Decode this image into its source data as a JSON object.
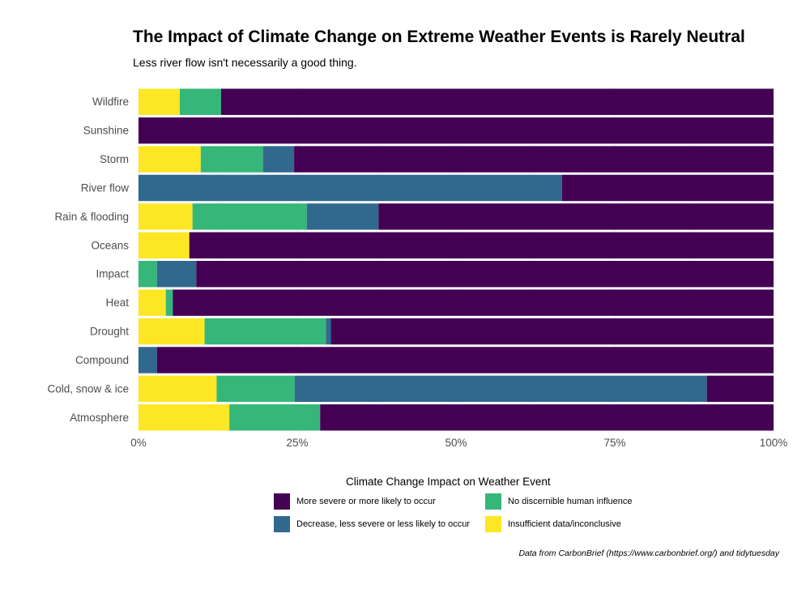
{
  "chart_data": {
    "type": "bar",
    "orientation": "horizontal",
    "stacked": true,
    "normalized": true,
    "title": "The Impact of Climate Change on Extreme Weather Events is Rarely Neutral",
    "subtitle": "Less river flow isn't necessarily a good thing.",
    "xlabel": "",
    "ylabel": "",
    "xlim": [
      0,
      100
    ],
    "x_ticks": [
      "0%",
      "25%",
      "50%",
      "75%",
      "100%"
    ],
    "categories": [
      "Wildfire",
      "Sunshine",
      "Storm",
      "River flow",
      "Rain & flooding",
      "Oceans",
      "Impact",
      "Heat",
      "Drought",
      "Compound",
      "Cold, snow & ice",
      "Atmosphere"
    ],
    "series": [
      {
        "name": "Insufficient data/inconclusive",
        "color": "#fde725",
        "values": [
          6.5,
          0,
          9.8,
          0,
          8.5,
          8.0,
          0,
          4.3,
          10.4,
          0,
          12.3,
          14.3
        ]
      },
      {
        "name": "No discernible human influence",
        "color": "#35b779",
        "values": [
          6.5,
          0,
          9.8,
          0,
          18.0,
          0,
          2.9,
          1.1,
          19.1,
          0,
          12.3,
          14.3
        ]
      },
      {
        "name": "Decrease, less severe or less likely to occur",
        "color": "#31688e",
        "values": [
          0,
          0,
          4.9,
          66.7,
          11.3,
          0,
          6.2,
          0,
          0.8,
          2.9,
          64.9,
          0
        ]
      },
      {
        "name": "More severe or more likely to occur",
        "color": "#440154",
        "values": [
          87.0,
          100,
          75.5,
          33.3,
          62.2,
          92.0,
          90.9,
          94.6,
          69.7,
          97.1,
          10.5,
          71.4
        ]
      }
    ],
    "legend": {
      "title": "Climate Change Impact on Weather Event",
      "position": "bottom",
      "entries": [
        {
          "label": "More severe or more likely to occur",
          "color": "#440154"
        },
        {
          "label": "No discernible human influence",
          "color": "#35b779"
        },
        {
          "label": "Decrease, less severe or less likely to occur",
          "color": "#31688e"
        },
        {
          "label": "Insufficient data/inconclusive",
          "color": "#fde725"
        }
      ]
    },
    "caption": "Data from CarbonBrief (https://www.carbonbrief.org/) and tidytuesday",
    "grid": true
  }
}
